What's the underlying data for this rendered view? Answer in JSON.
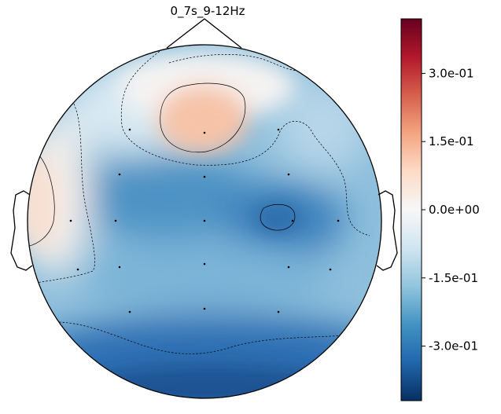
{
  "chart_data": {
    "type": "heatmap",
    "subtype": "eeg-topomap",
    "title": "0_7s_9-12Hz",
    "colormap": "RdBu_r",
    "colorbar": {
      "vmin": -0.42,
      "vmax": 0.42,
      "ticks": [
        0.3,
        0.15,
        0.0,
        -0.15,
        -0.3
      ],
      "tick_labels": [
        "3.0e-01",
        "1.5e-01",
        "0.0e+00",
        "-1.5e-01",
        "-3.0e-01"
      ],
      "placement": "right"
    },
    "contour_levels": [
      0.0,
      -0.15,
      -0.3
    ],
    "sensor_markers": true,
    "head_outline": true
  }
}
